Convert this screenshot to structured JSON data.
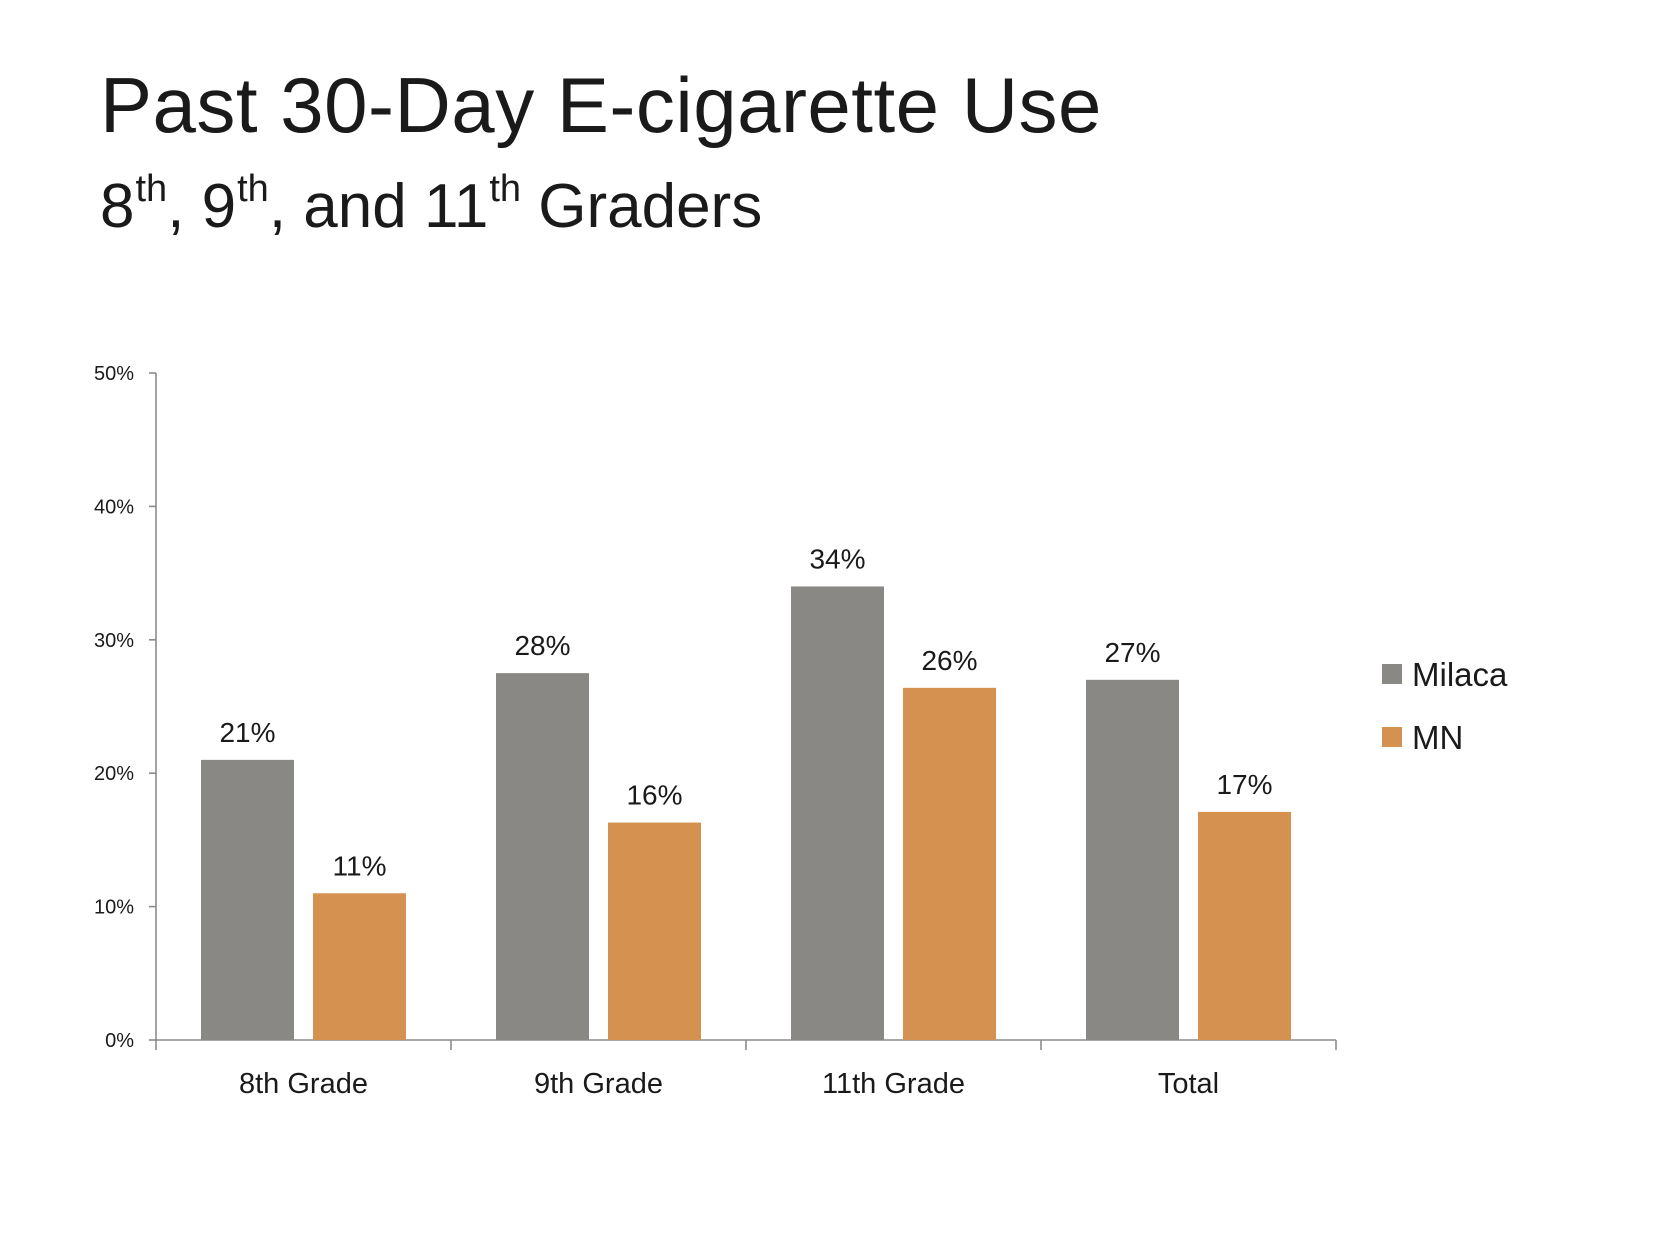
{
  "header": {
    "title": "Past 30-Day E-cigarette Use",
    "subtitle_part1": "8",
    "subtitle_sup1": "th",
    "subtitle_part2": ", 9",
    "subtitle_sup2": "th",
    "subtitle_part3": ", and 11",
    "subtitle_sup3": "th",
    "subtitle_part4": " Graders"
  },
  "chart_data": {
    "type": "bar",
    "title": "",
    "xlabel": "",
    "ylabel": "",
    "categories": [
      "8th Grade",
      "9th Grade",
      "11th Grade",
      "Total"
    ],
    "series": [
      {
        "name": "Milaca",
        "color": "#8a8885",
        "values": [
          21,
          27.5,
          34,
          27
        ],
        "labels": [
          "21%",
          "28%",
          "34%",
          "27%"
        ]
      },
      {
        "name": "MN",
        "color": "#d4914f",
        "values": [
          11,
          16.3,
          26.4,
          17.1
        ],
        "labels": [
          "11%",
          "16%",
          "26%",
          "17%"
        ]
      }
    ],
    "ylim": [
      0,
      50
    ],
    "yticks": [
      0,
      10,
      20,
      30,
      40,
      50
    ],
    "ytick_labels": [
      "0%",
      "10%",
      "20%",
      "30%",
      "40%",
      "50%"
    ],
    "grid": false,
    "legend_position": "right"
  }
}
